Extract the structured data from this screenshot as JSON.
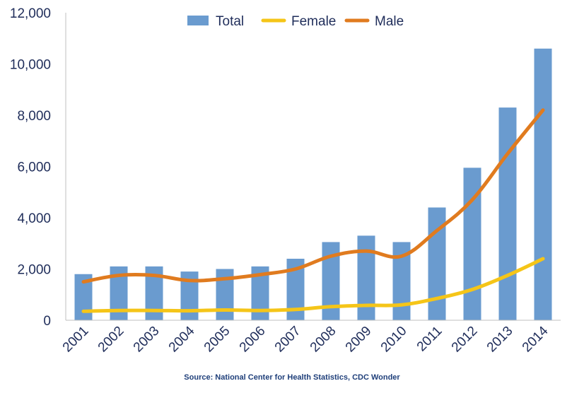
{
  "chart_data": {
    "type": "bar",
    "categories": [
      "2001",
      "2002",
      "2003",
      "2004",
      "2005",
      "2006",
      "2007",
      "2008",
      "2009",
      "2010",
      "2011",
      "2012",
      "2013",
      "2014"
    ],
    "series": [
      {
        "name": "Total",
        "kind": "bar",
        "color": "#6a9bcf",
        "values": [
          1800,
          2100,
          2100,
          1900,
          2000,
          2100,
          2400,
          3050,
          3300,
          3050,
          4400,
          5950,
          8300,
          10600
        ]
      },
      {
        "name": "Female",
        "kind": "line",
        "color": "#f5c518",
        "values": [
          350,
          380,
          380,
          370,
          400,
          380,
          420,
          530,
          580,
          600,
          850,
          1200,
          1750,
          2400
        ]
      },
      {
        "name": "Male",
        "kind": "line",
        "color": "#e07b1f",
        "values": [
          1500,
          1750,
          1750,
          1550,
          1620,
          1780,
          2000,
          2500,
          2700,
          2500,
          3500,
          4700,
          6500,
          8200
        ]
      }
    ],
    "y_ticks": [
      "0",
      "2,000",
      "4,000",
      "6,000",
      "8,000",
      "10,000",
      "12,000"
    ],
    "ylim": [
      0,
      12000
    ],
    "legend_position": "top-center",
    "grid": false,
    "source": "Source: National Center for Health Statistics, CDC Wonder"
  }
}
